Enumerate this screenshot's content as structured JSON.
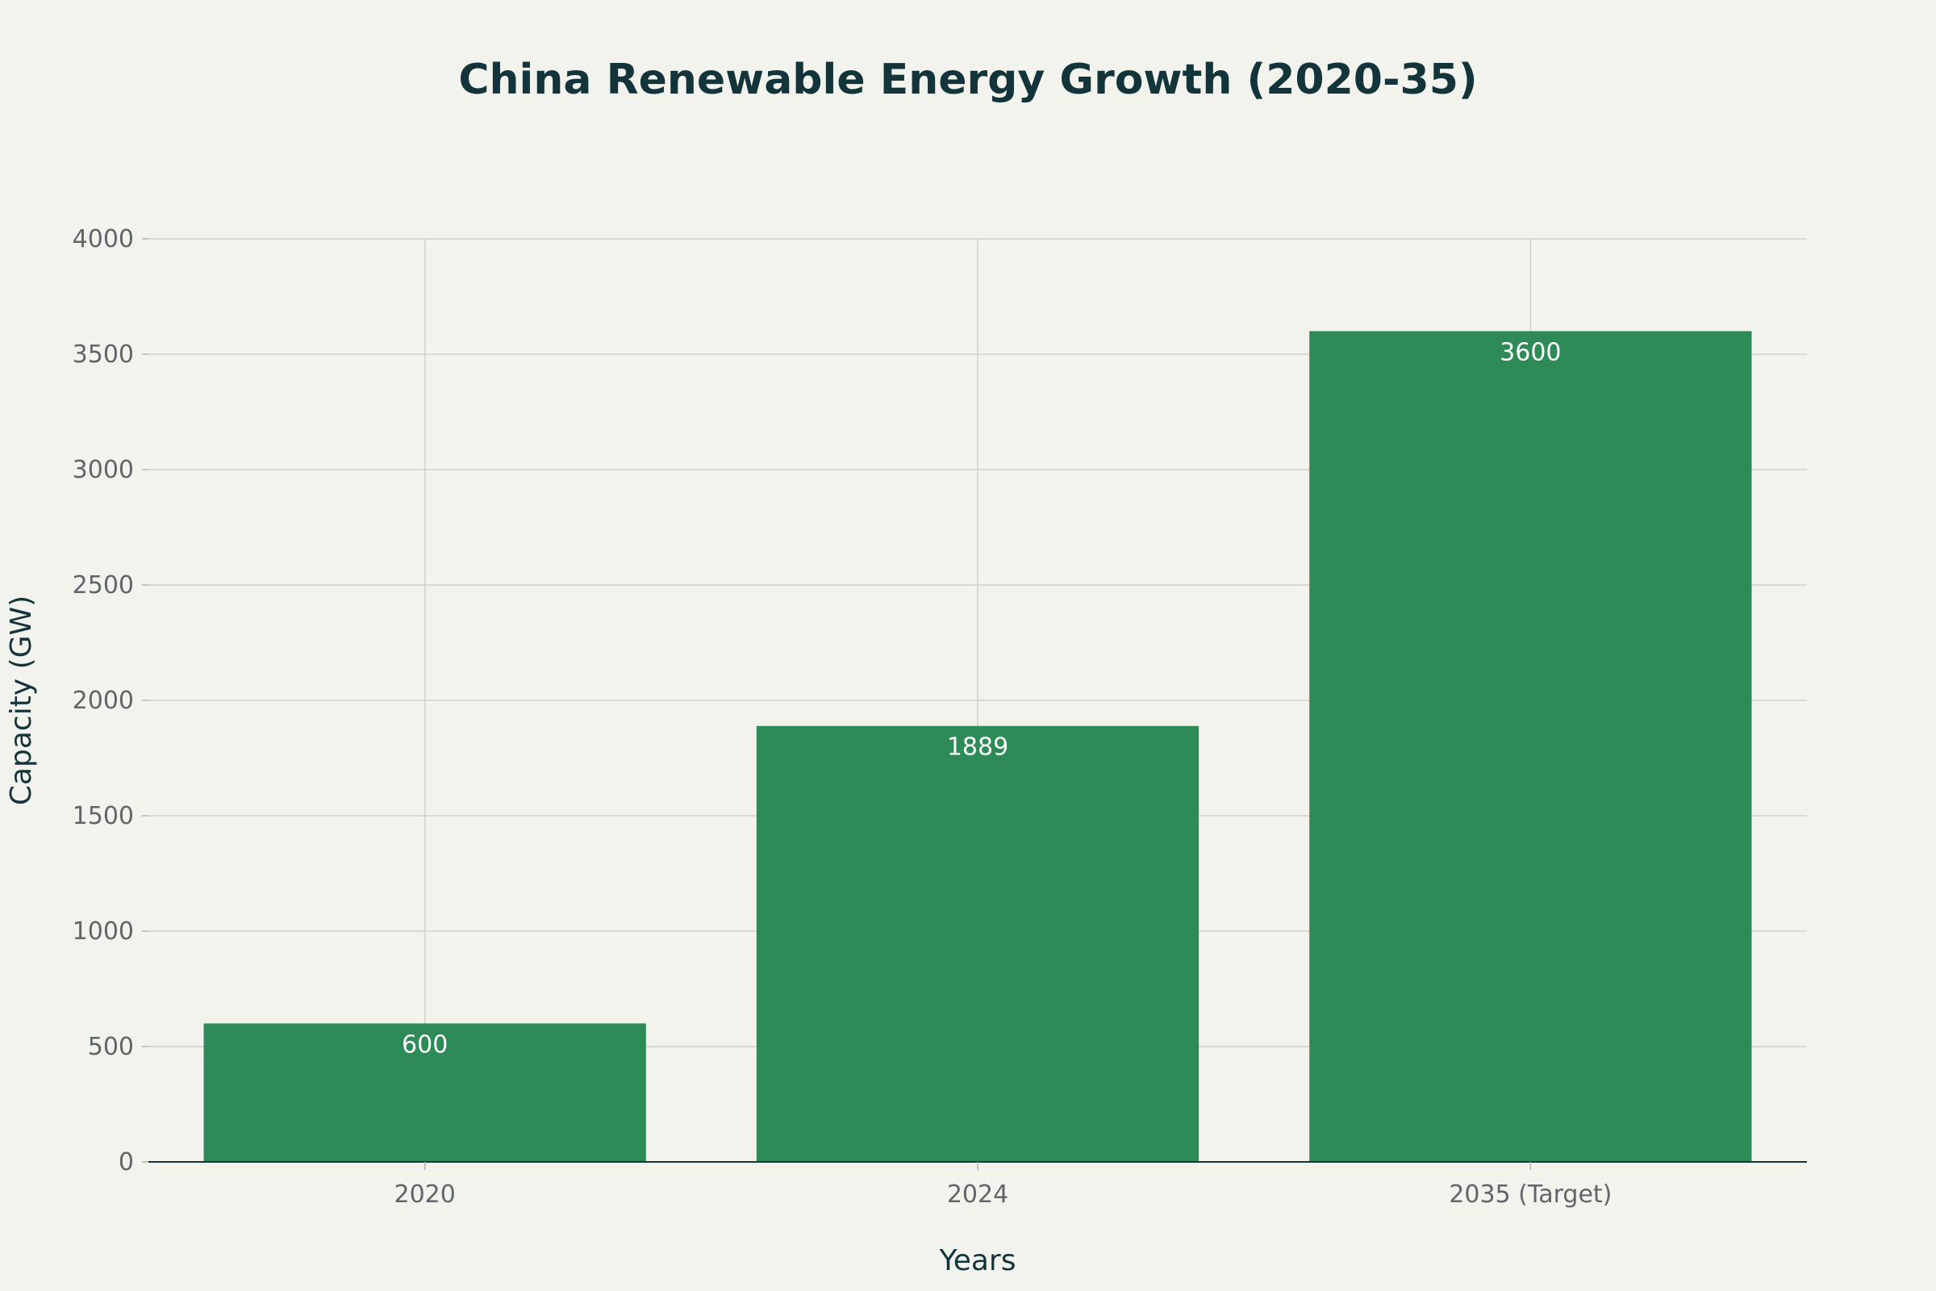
{
  "chart_data": {
    "type": "bar",
    "title": "China Renewable Energy Growth (2020-35)",
    "xlabel": "Years",
    "ylabel": "Capacity (GW)",
    "categories": [
      "2020",
      "2024",
      "2035 (Target)"
    ],
    "values": [
      600,
      1889,
      3600
    ],
    "data_labels": [
      "600",
      "1889",
      "3600"
    ],
    "ylim": [
      0,
      4000
    ],
    "yticks": [
      0,
      500,
      1000,
      1500,
      2000,
      2500,
      3000,
      3500,
      4000
    ],
    "grid": true,
    "legend": "none",
    "bar_color": "#2e8b57"
  }
}
